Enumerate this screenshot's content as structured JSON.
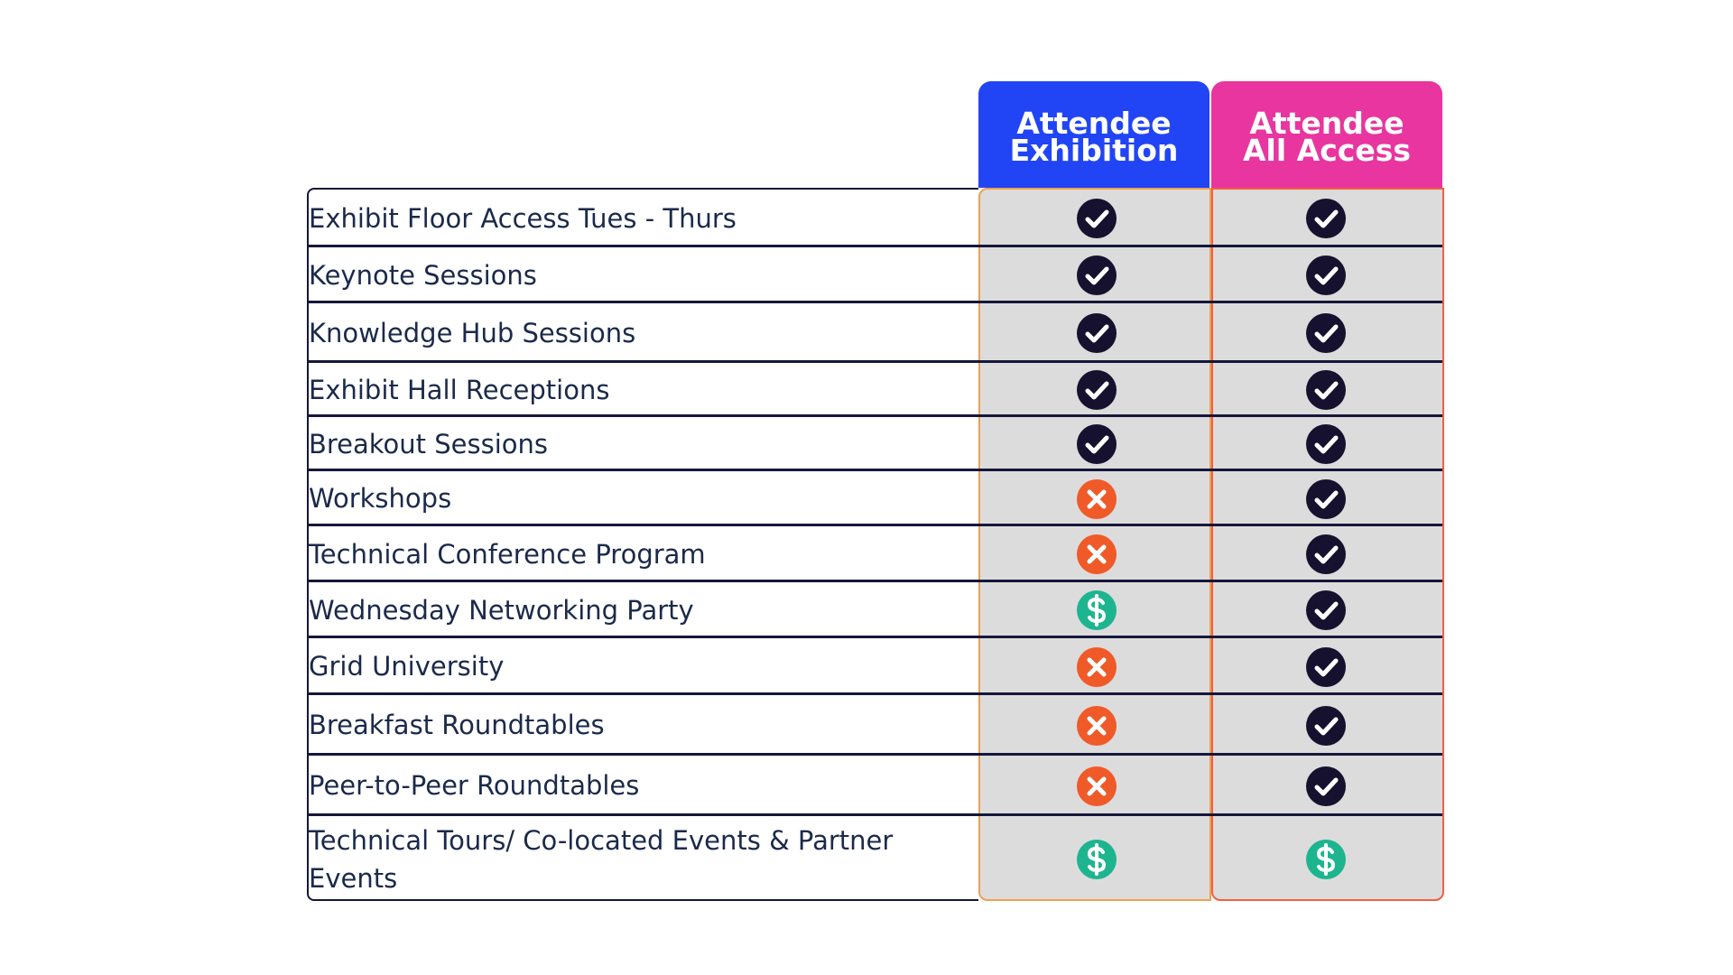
{
  "table": {
    "columns": [
      {
        "lines": [
          "Attendee",
          "Exhibition"
        ]
      },
      {
        "lines": [
          "Attendee",
          "All Access"
        ]
      }
    ],
    "rows": [
      "Exhibit Floor Access Tues - Thurs",
      "Keynote Sessions",
      "Knowledge Hub Sessions",
      "Exhibit Hall Receptions",
      "Breakout Sessions",
      "Workshops",
      "Technical Conference Program",
      "Wednesday Networking Party",
      "Grid University",
      "Breakfast Roundtables",
      "Peer-to-Peer Roundtables",
      "Technical Tours/ Co-located Events & Partner Events"
    ]
  }
}
